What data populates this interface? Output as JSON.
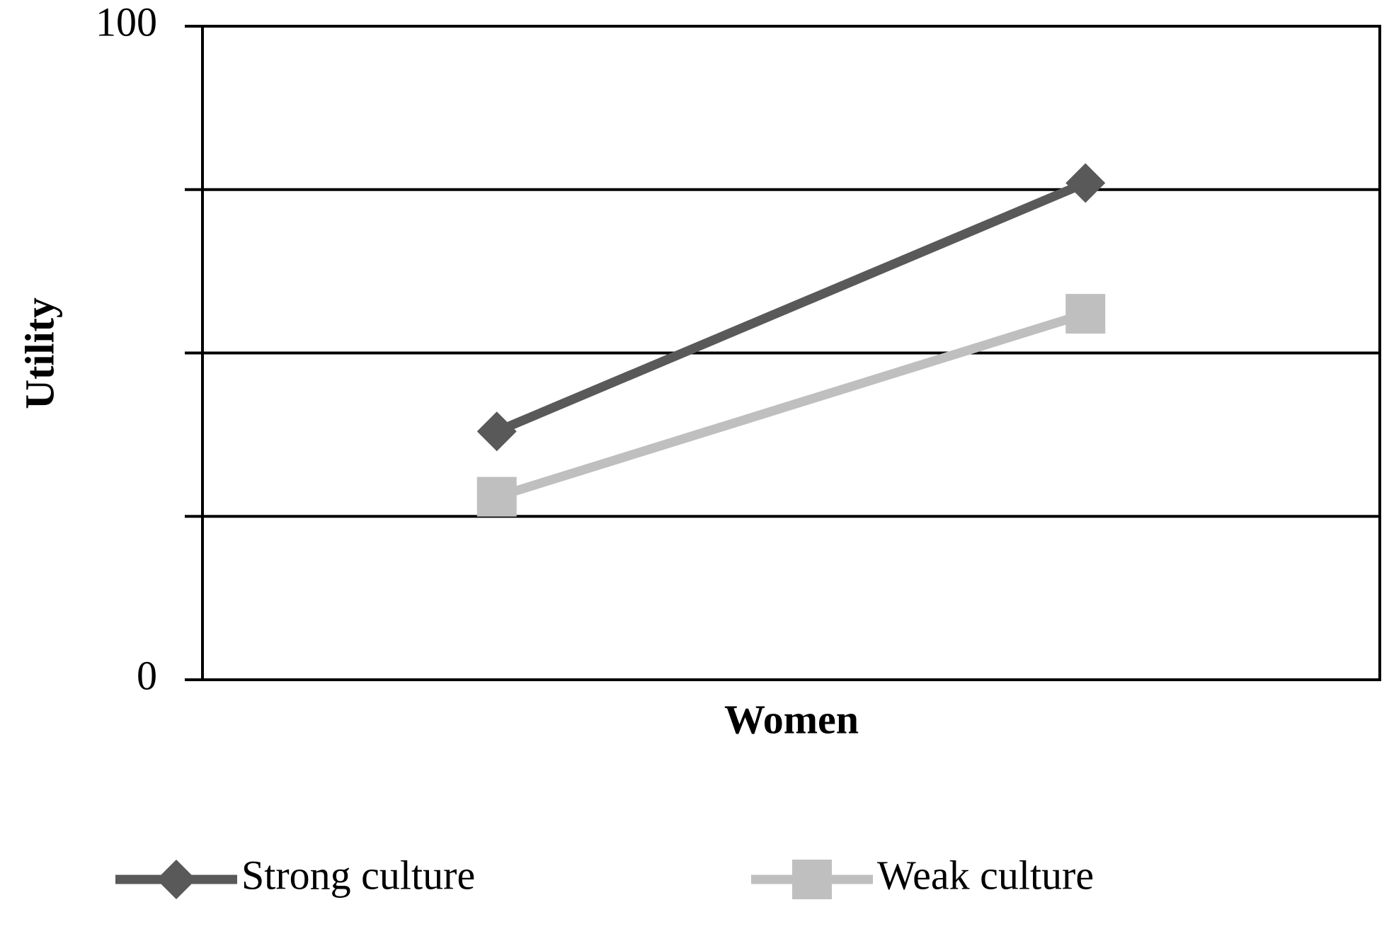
{
  "chart_data": {
    "type": "line",
    "y_label": "Utility",
    "x_label": "Women",
    "categories": [
      null,
      null
    ],
    "series": [
      {
        "name": "Strong culture",
        "color": "#595959",
        "marker": "diamond",
        "values": [
          38,
          76
        ]
      },
      {
        "name": "Weak culture",
        "color": "#bfbfbf",
        "marker": "square",
        "values": [
          28,
          56
        ]
      }
    ],
    "ylim": [
      0,
      100
    ],
    "yticks": [
      0,
      {
        "value": 25,
        "label": null
      },
      {
        "value": 50,
        "label": null
      },
      {
        "value": 75,
        "label": null
      },
      100
    ],
    "grid": true,
    "legend": "bottom"
  }
}
